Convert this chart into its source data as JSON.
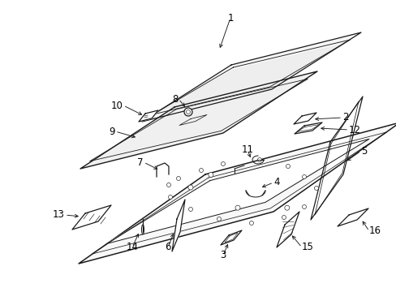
{
  "background_color": "#ffffff",
  "line_color": "#1a1a1a",
  "label_color": "#000000",
  "lw": 0.9,
  "fs": 8.5
}
